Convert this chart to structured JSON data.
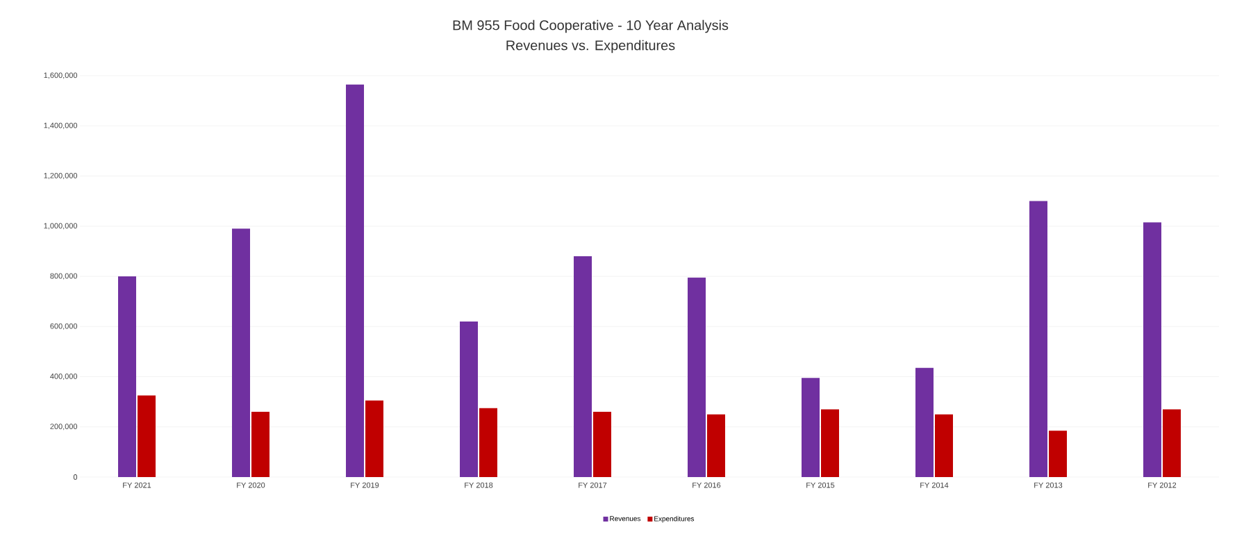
{
  "chart_data": {
    "type": "bar",
    "title": "BM 955 Food Cooperative - 10 Year Analysis",
    "subtitle": "Revenues vs. Expenditures",
    "categories": [
      "FY 2021",
      "FY 2020",
      "FY 2019",
      "FY 2018",
      "FY 2017",
      "FY 2016",
      "FY 2015",
      "FY 2014",
      "FY 2013",
      "FY 2012"
    ],
    "series": [
      {
        "name": "Revenues",
        "color": "#7030a0",
        "values": [
          800000,
          990000,
          1565000,
          620000,
          880000,
          795000,
          395000,
          435000,
          1100000,
          1015000
        ]
      },
      {
        "name": "Expenditures",
        "color": "#c00000",
        "values": [
          325000,
          260000,
          305000,
          275000,
          260000,
          250000,
          270000,
          250000,
          185000,
          270000
        ]
      }
    ],
    "ylim": [
      0,
      1600000
    ],
    "yticks": [
      {
        "value": 0,
        "label": "0"
      },
      {
        "value": 200000,
        "label": "200,000"
      },
      {
        "value": 400000,
        "label": "400,000"
      },
      {
        "value": 600000,
        "label": "600,000"
      },
      {
        "value": 800000,
        "label": "800,000"
      },
      {
        "value": 1000000,
        "label": "1,000,000"
      },
      {
        "value": 1200000,
        "label": "1,200,000"
      },
      {
        "value": 1400000,
        "label": "1,400,000"
      },
      {
        "value": 1600000,
        "label": "1,600,000"
      }
    ],
    "grid": "y",
    "legend": "bottom"
  }
}
